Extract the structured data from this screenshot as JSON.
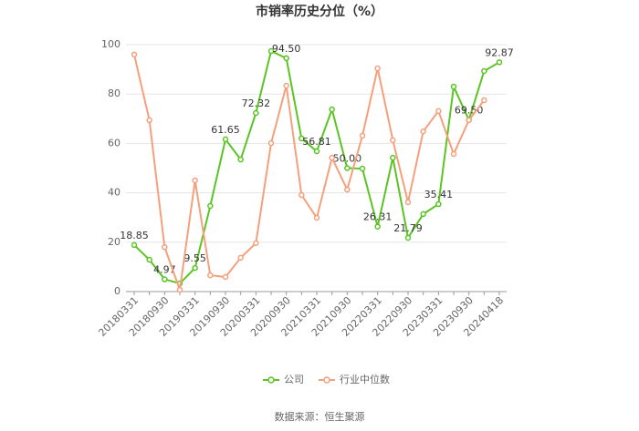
{
  "chart_data": {
    "type": "line",
    "title": "市销率历史分位（%）",
    "categories": [
      "20180331",
      null,
      "20180930",
      null,
      "20190331",
      null,
      "20190930",
      null,
      "20200331",
      null,
      "20200930",
      null,
      "20210331",
      null,
      "20210930",
      null,
      "20220331",
      null,
      "20220930",
      null,
      "20230331",
      null,
      "20230930",
      null,
      "20240418"
    ],
    "series": [
      {
        "name": "公司",
        "color": "#5bc424",
        "values": [
          18.85,
          12.9,
          4.97,
          3.3,
          9.55,
          34.7,
          61.65,
          53.5,
          72.32,
          97.4,
          94.5,
          62,
          56.81,
          73.8,
          50.0,
          49.8,
          26.31,
          54.2,
          21.79,
          31.4,
          35.41,
          83,
          69.5,
          89.3,
          92.87
        ],
        "value_labels": [
          "18.85",
          null,
          "4.97",
          null,
          "9.55",
          null,
          "61.65",
          null,
          "72.32",
          null,
          "94.50",
          null,
          "56.81",
          null,
          "50.00",
          null,
          "26.31",
          null,
          "21.79",
          null,
          "35.41",
          null,
          "69.50",
          null,
          "92.87"
        ]
      },
      {
        "name": "行业中位数",
        "color": "#f5a07c",
        "values": [
          96,
          69.4,
          18,
          0.7,
          45,
          6.6,
          5.9,
          13.7,
          19.6,
          60.1,
          83.4,
          39.1,
          29.9,
          54.2,
          41.3,
          63.1,
          90.4,
          61.3,
          36.2,
          64.9,
          73.1,
          55.7,
          69.4,
          77.5,
          null
        ]
      }
    ],
    "ylim": [
      0,
      100
    ],
    "yticks": [
      0,
      20,
      40,
      60,
      80,
      100
    ],
    "grid": true,
    "source": "数据来源：恒生聚源"
  }
}
